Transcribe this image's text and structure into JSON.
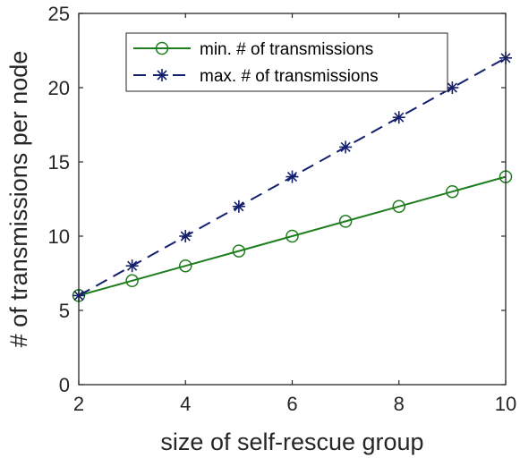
{
  "chart_data": {
    "type": "line",
    "title": "",
    "xlabel": "size of self-rescue group",
    "ylabel": "# of transmissions per node",
    "xlim": [
      2,
      10
    ],
    "ylim": [
      0,
      25
    ],
    "xticks": [
      2,
      4,
      6,
      8,
      10
    ],
    "yticks": [
      0,
      5,
      10,
      15,
      20,
      25
    ],
    "grid": false,
    "legend_position": "top-right",
    "x": [
      2,
      3,
      4,
      5,
      6,
      7,
      8,
      9,
      10
    ],
    "series": [
      {
        "name": "min. # of transmissions",
        "values": [
          6,
          7,
          8,
          9,
          10,
          11,
          12,
          13,
          14
        ],
        "color": "#1e7d1e",
        "line_style": "solid",
        "marker": "circle"
      },
      {
        "name": "max. # of transmissions",
        "values": [
          6,
          8,
          10,
          12,
          14,
          16,
          18,
          20,
          22
        ],
        "color": "#14206e",
        "line_style": "dashed",
        "marker": "asterisk"
      }
    ]
  }
}
